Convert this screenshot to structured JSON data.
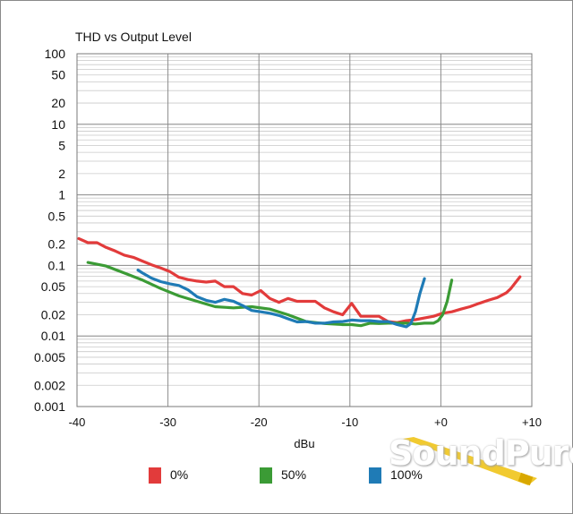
{
  "chart_data": {
    "type": "line",
    "title": "THD vs Output Level",
    "xlabel": "dBu",
    "ylabel": "",
    "xlim": [
      -40,
      10
    ],
    "ylim": [
      0.001,
      100
    ],
    "yscale": "log",
    "grid": true,
    "legend_position": "bottom",
    "x_ticks": [
      {
        "value": -40,
        "label": "-40"
      },
      {
        "value": -30,
        "label": "-30"
      },
      {
        "value": -20,
        "label": "-20"
      },
      {
        "value": -10,
        "label": "-10"
      },
      {
        "value": 0,
        "label": "+0"
      },
      {
        "value": 10,
        "label": "+10"
      }
    ],
    "y_ticks": [
      {
        "value": 100,
        "label": "100"
      },
      {
        "value": 50,
        "label": "50"
      },
      {
        "value": 20,
        "label": "20"
      },
      {
        "value": 10,
        "label": "10"
      },
      {
        "value": 5,
        "label": "5"
      },
      {
        "value": 2,
        "label": "2"
      },
      {
        "value": 1,
        "label": "1"
      },
      {
        "value": 0.5,
        "label": "0.5"
      },
      {
        "value": 0.2,
        "label": "0.2"
      },
      {
        "value": 0.1,
        "label": "0.1"
      },
      {
        "value": 0.05,
        "label": "0.05"
      },
      {
        "value": 0.02,
        "label": "0.02"
      },
      {
        "value": 0.01,
        "label": "0.01"
      },
      {
        "value": 0.005,
        "label": "0.005"
      },
      {
        "value": 0.002,
        "label": "0.002"
      },
      {
        "value": 0.001,
        "label": "0.001"
      }
    ],
    "series": [
      {
        "name": "0%",
        "color": "#e23b3b",
        "x": [
          -39.8,
          -38.8,
          -37.8,
          -36.8,
          -35.8,
          -34.8,
          -33.8,
          -32.8,
          -31.8,
          -30.8,
          -29.8,
          -28.8,
          -27.8,
          -26.8,
          -25.8,
          -24.8,
          -23.8,
          -22.8,
          -21.8,
          -20.8,
          -19.8,
          -18.8,
          -17.8,
          -16.8,
          -15.8,
          -14.8,
          -13.8,
          -12.8,
          -11.8,
          -10.8,
          -9.8,
          -8.8,
          -7.8,
          -6.8,
          -5.8,
          -4.8,
          -3.8,
          -2.8,
          -1.8,
          -0.8,
          0.2,
          1.2,
          2.2,
          3.2,
          4.2,
          5.2,
          6.2,
          7.2,
          7.7,
          8.2,
          8.7
        ],
        "y": [
          0.24,
          0.21,
          0.21,
          0.18,
          0.16,
          0.14,
          0.13,
          0.115,
          0.102,
          0.092,
          0.082,
          0.068,
          0.063,
          0.06,
          0.058,
          0.06,
          0.05,
          0.05,
          0.04,
          0.038,
          0.044,
          0.034,
          0.03,
          0.034,
          0.031,
          0.031,
          0.031,
          0.025,
          0.022,
          0.02,
          0.029,
          0.019,
          0.019,
          0.019,
          0.016,
          0.0155,
          0.0165,
          0.017,
          0.018,
          0.019,
          0.021,
          0.022,
          0.024,
          0.026,
          0.029,
          0.032,
          0.035,
          0.041,
          0.047,
          0.057,
          0.069
        ]
      },
      {
        "name": "50%",
        "color": "#3b9b35",
        "x": [
          -38.8,
          -36.8,
          -34.8,
          -32.8,
          -30.8,
          -28.8,
          -26.8,
          -24.8,
          -22.8,
          -20.8,
          -18.8,
          -16.8,
          -14.8,
          -12.8,
          -10.8,
          -9.8,
          -8.8,
          -7.8,
          -6.8,
          -5.8,
          -4.8,
          -3.8,
          -2.8,
          -1.8,
          -0.8,
          -0.3,
          0.2,
          0.7,
          1.2
        ],
        "y": [
          0.11,
          0.098,
          0.078,
          0.062,
          0.047,
          0.037,
          0.031,
          0.026,
          0.025,
          0.026,
          0.024,
          0.02,
          0.016,
          0.015,
          0.0145,
          0.0145,
          0.014,
          0.0152,
          0.015,
          0.0152,
          0.0152,
          0.0152,
          0.0148,
          0.0152,
          0.0152,
          0.0165,
          0.02,
          0.031,
          0.062
        ]
      },
      {
        "name": "100%",
        "color": "#1f7bb6",
        "x": [
          -33.3,
          -32.8,
          -31.8,
          -30.8,
          -29.8,
          -28.8,
          -27.8,
          -26.8,
          -25.8,
          -24.8,
          -23.8,
          -22.8,
          -21.8,
          -20.8,
          -19.8,
          -18.8,
          -17.8,
          -16.8,
          -15.8,
          -14.8,
          -13.8,
          -12.8,
          -11.8,
          -10.8,
          -9.8,
          -8.8,
          -7.8,
          -6.8,
          -5.8,
          -4.8,
          -3.8,
          -3.3,
          -2.8,
          -2.3,
          -1.8
        ],
        "y": [
          0.086,
          0.078,
          0.066,
          0.059,
          0.055,
          0.052,
          0.045,
          0.036,
          0.032,
          0.03,
          0.033,
          0.031,
          0.027,
          0.023,
          0.022,
          0.021,
          0.0195,
          0.0175,
          0.0158,
          0.016,
          0.0152,
          0.0152,
          0.0158,
          0.016,
          0.0168,
          0.0165,
          0.0165,
          0.016,
          0.016,
          0.0145,
          0.0135,
          0.015,
          0.022,
          0.04,
          0.065
        ]
      }
    ]
  },
  "brand": {
    "logo_text": "SoundPure",
    "accent_color": "#f0c419"
  }
}
